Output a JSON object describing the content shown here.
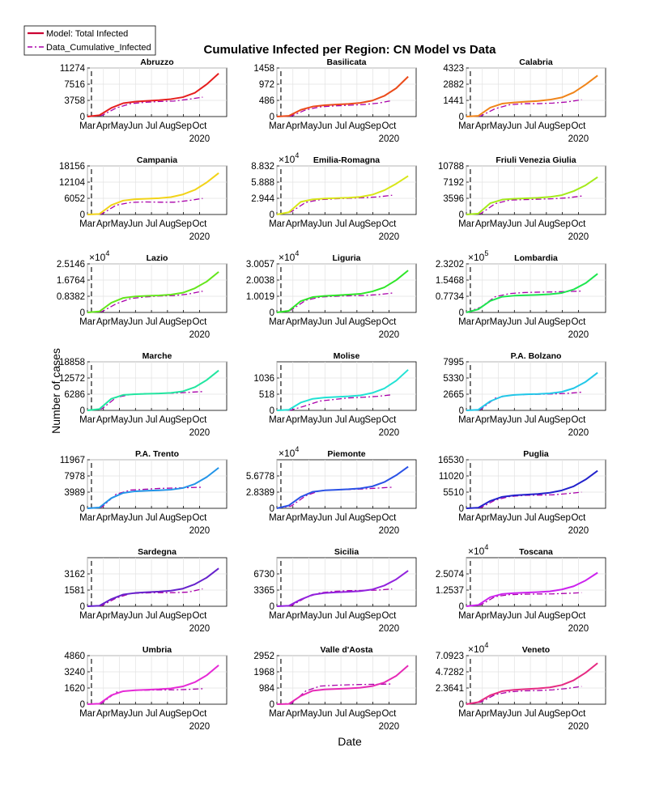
{
  "figure": {
    "title": "Cumulative Infected per Region: CN Model vs Data",
    "ylabel": "Number of cases",
    "xlabel": "Date",
    "legend": {
      "model_label": "Model: Total Infected",
      "data_label": "Data_Cumulative_Infected",
      "model_color": "#cc0033",
      "data_color": "#aa00aa"
    },
    "x_ticks": [
      "Mar",
      "Apr",
      "May",
      "Jun",
      "Jul",
      "Aug",
      "Sep",
      "Oct"
    ],
    "year_label": "2020"
  },
  "chart_data": [
    {
      "type": "line",
      "title": "Abruzzo",
      "color": "#e61e1e",
      "yticks": [
        "0",
        "3758",
        "7516",
        "11274"
      ],
      "exponent": "",
      "ylim": [
        0,
        11274
      ],
      "model_values": [
        0,
        300,
        2000,
        3100,
        3450,
        3650,
        3800,
        4050,
        4500,
        5500,
        7500,
        10000
      ],
      "data_values": [
        0,
        250,
        2000,
        3000,
        3300,
        3500,
        3600,
        4000,
        4500
      ]
    },
    {
      "type": "line",
      "title": "Basilicata",
      "color": "#eb4b1a",
      "yticks": [
        "0",
        "486",
        "972",
        "1458"
      ],
      "exponent": "",
      "ylim": [
        0,
        1458
      ],
      "model_values": [
        0,
        20,
        200,
        300,
        340,
        360,
        380,
        410,
        480,
        620,
        850,
        1200
      ],
      "data_values": [
        0,
        15,
        200,
        290,
        320,
        340,
        360,
        400,
        480
      ]
    },
    {
      "type": "line",
      "title": "Calabria",
      "color": "#f08419",
      "yticks": [
        "0",
        "1441",
        "2882",
        "4323"
      ],
      "exponent": "",
      "ylim": [
        0,
        4323
      ],
      "model_values": [
        0,
        60,
        800,
        1150,
        1250,
        1320,
        1390,
        1500,
        1700,
        2150,
        2850,
        3650
      ],
      "data_values": [
        0,
        50,
        700,
        1050,
        1150,
        1150,
        1200,
        1300,
        1500
      ]
    },
    {
      "type": "line",
      "title": "Campania",
      "color": "#f2d318",
      "yticks": [
        "0",
        "6052",
        "12104",
        "18156"
      ],
      "exponent": "",
      "ylim": [
        0,
        18156
      ],
      "model_values": [
        0,
        200,
        3500,
        5200,
        5700,
        5900,
        6100,
        6500,
        7500,
        9200,
        12000,
        15500
      ],
      "data_values": [
        0,
        200,
        3500,
        4500,
        4700,
        4600,
        4600,
        5200,
        6000
      ]
    },
    {
      "type": "line",
      "title": "Emilia-Romagna",
      "color": "#d8e618",
      "yticks": [
        "0",
        "2.944",
        "5.888",
        "8.832"
      ],
      "exponent": "×10^4",
      "ylim": [
        0,
        8.832
      ],
      "model_values": [
        0,
        0.4,
        2.3,
        2.75,
        2.9,
        2.98,
        3.05,
        3.2,
        3.6,
        4.4,
        5.6,
        7.0
      ],
      "data_values": [
        0,
        0.5,
        2.2,
        2.7,
        2.85,
        2.95,
        3.05,
        3.2,
        3.5
      ]
    },
    {
      "type": "line",
      "title": "Friuli Venezia Giulia",
      "color": "#a4ea1a",
      "yticks": [
        "0",
        "3596",
        "7192",
        "10788"
      ],
      "exponent": "",
      "ylim": [
        0,
        10788
      ],
      "model_values": [
        0,
        200,
        2500,
        3300,
        3500,
        3600,
        3700,
        3900,
        4300,
        5200,
        6500,
        8300
      ],
      "data_values": [
        0,
        200,
        2400,
        3200,
        3300,
        3400,
        3500,
        3700,
        4100
      ]
    },
    {
      "type": "line",
      "title": "Lazio",
      "color": "#64e61c",
      "yticks": [
        "0",
        "0.8382",
        "1.6764",
        "2.5146"
      ],
      "exponent": "×10^4",
      "ylim": [
        0,
        2.5146
      ],
      "model_values": [
        0,
        0.05,
        0.5,
        0.75,
        0.83,
        0.86,
        0.88,
        0.92,
        1.02,
        1.25,
        1.6,
        2.1
      ],
      "data_values": [
        0,
        0.04,
        0.45,
        0.72,
        0.8,
        0.85,
        0.87,
        0.95,
        1.1
      ]
    },
    {
      "type": "line",
      "title": "Liguria",
      "color": "#2ee628",
      "yticks": [
        "0",
        "1.0019",
        "2.0038",
        "3.0057"
      ],
      "exponent": "×10^4",
      "ylim": [
        0,
        3.0057
      ],
      "model_values": [
        0,
        0.1,
        0.7,
        0.95,
        1.02,
        1.06,
        1.1,
        1.15,
        1.3,
        1.55,
        2.0,
        2.6
      ],
      "data_values": [
        0,
        0.15,
        0.75,
        0.95,
        1.0,
        1.03,
        1.05,
        1.1,
        1.2
      ]
    },
    {
      "type": "line",
      "title": "Lombardia",
      "color": "#1ee650",
      "yticks": [
        "0",
        "0.7734",
        "1.5468",
        "2.3202"
      ],
      "exponent": "×10^5",
      "ylim": [
        0,
        2.3202
      ],
      "model_values": [
        0,
        0.15,
        0.55,
        0.75,
        0.8,
        0.82,
        0.84,
        0.87,
        0.93,
        1.1,
        1.4,
        1.85
      ],
      "data_values": [
        0,
        0.25,
        0.75,
        0.9,
        0.95,
        0.97,
        0.98,
        1.0,
        1.02
      ]
    },
    {
      "type": "line",
      "title": "Marche",
      "color": "#22e6a0",
      "yticks": [
        "0",
        "6286",
        "12572",
        "18858"
      ],
      "exponent": "",
      "ylim": [
        0,
        18858
      ],
      "model_values": [
        0,
        500,
        4500,
        6000,
        6300,
        6450,
        6550,
        6800,
        7400,
        9000,
        11800,
        15500
      ],
      "data_values": [
        0,
        600,
        5000,
        6200,
        6500,
        6600,
        6700,
        7000,
        7300
      ]
    },
    {
      "type": "line",
      "title": "Molise",
      "color": "#22e2d4",
      "yticks": [
        "0",
        "518",
        "1036"
      ],
      "exponent": "",
      "ylim": [
        0,
        1554
      ],
      "model_values": [
        0,
        20,
        250,
        370,
        410,
        430,
        450,
        480,
        560,
        700,
        950,
        1300
      ],
      "data_values": [
        0,
        10,
        150,
        300,
        350,
        400,
        420,
        450,
        500
      ]
    },
    {
      "type": "line",
      "title": "P.A. Bolzano",
      "color": "#22c8e8",
      "yticks": [
        "0",
        "2665",
        "5330",
        "7995"
      ],
      "exponent": "",
      "ylim": [
        0,
        7995
      ],
      "model_values": [
        0,
        100,
        1500,
        2300,
        2550,
        2650,
        2700,
        2800,
        3050,
        3650,
        4700,
        6200
      ],
      "data_values": [
        0,
        150,
        2000,
        2500,
        2600,
        2650,
        2700,
        2800,
        3000
      ]
    },
    {
      "type": "line",
      "title": "P.A. Trento",
      "color": "#2294e8",
      "yticks": [
        "0",
        "3989",
        "7978",
        "11967"
      ],
      "exponent": "",
      "ylim": [
        0,
        11967
      ],
      "model_values": [
        0,
        200,
        2500,
        3800,
        4200,
        4350,
        4450,
        4600,
        5000,
        6000,
        7700,
        10000
      ],
      "data_values": [
        0,
        300,
        3500,
        4500,
        4700,
        4900,
        5000,
        5100,
        5200
      ]
    },
    {
      "type": "line",
      "title": "Piemonte",
      "color": "#2a52e6",
      "yticks": [
        "0",
        "2.8389",
        "5.6778"
      ],
      "exponent": "×10^4",
      "ylim": [
        0,
        8.5167
      ],
      "model_values": [
        0,
        0.5,
        2.0,
        2.9,
        3.15,
        3.25,
        3.35,
        3.5,
        3.85,
        4.6,
        5.8,
        7.3
      ],
      "data_values": [
        0,
        0.4,
        2.2,
        3.1,
        3.25,
        3.3,
        3.4,
        3.55,
        3.7
      ]
    },
    {
      "type": "line",
      "title": "Puglia",
      "color": "#2222cc",
      "yticks": [
        "0",
        "5510",
        "11020",
        "16530"
      ],
      "exponent": "",
      "ylim": [
        0,
        16530
      ],
      "model_values": [
        0,
        200,
        2500,
        3900,
        4400,
        4650,
        4900,
        5300,
        6100,
        7500,
        9800,
        12800
      ],
      "data_values": [
        0,
        200,
        2800,
        4000,
        4400,
        4500,
        4600,
        5000,
        5500
      ]
    },
    {
      "type": "line",
      "title": "Sardegna",
      "color": "#6622cc",
      "yticks": [
        "0",
        "1581",
        "3162"
      ],
      "exponent": "",
      "ylim": [
        0,
        4743
      ],
      "model_values": [
        0,
        50,
        700,
        1150,
        1300,
        1370,
        1430,
        1520,
        1720,
        2150,
        2800,
        3700
      ],
      "data_values": [
        0,
        60,
        800,
        1250,
        1300,
        1330,
        1330,
        1380,
        1700
      ]
    },
    {
      "type": "line",
      "title": "Sicilia",
      "color": "#9222dd",
      "yticks": [
        "0",
        "3365",
        "6730"
      ],
      "exponent": "",
      "ylim": [
        0,
        10095
      ],
      "model_values": [
        0,
        100,
        1400,
        2400,
        2750,
        2900,
        3000,
        3150,
        3500,
        4300,
        5600,
        7400
      ],
      "data_values": [
        0,
        100,
        1800,
        2800,
        3100,
        3250,
        3300,
        3350,
        3600
      ]
    },
    {
      "type": "line",
      "title": "Toscana",
      "color": "#cc22ee",
      "yticks": [
        "0",
        "1.2537",
        "2.5074"
      ],
      "exponent": "×10^4",
      "ylim": [
        0,
        3.7611
      ],
      "model_values": [
        0,
        0.1,
        0.7,
        0.95,
        1.02,
        1.06,
        1.1,
        1.15,
        1.3,
        1.55,
        2.0,
        2.6
      ],
      "data_values": [
        0,
        0.1,
        0.75,
        0.9,
        0.93,
        0.95,
        0.96,
        1.0,
        1.05
      ]
    },
    {
      "type": "line",
      "title": "Umbria",
      "color": "#e62ad6",
      "yticks": [
        "0",
        "1620",
        "3240",
        "4860"
      ],
      "exponent": "",
      "ylim": [
        0,
        4860
      ],
      "model_values": [
        0,
        50,
        900,
        1300,
        1400,
        1450,
        1500,
        1580,
        1780,
        2200,
        2900,
        3900
      ],
      "data_values": [
        0,
        100,
        1200,
        1380,
        1400,
        1430,
        1440,
        1480,
        1550
      ]
    },
    {
      "type": "line",
      "title": "Valle d'Aosta",
      "color": "#e62ab6",
      "yticks": [
        "0",
        "984",
        "1968",
        "2952"
      ],
      "exponent": "",
      "ylim": [
        0,
        2952
      ],
      "model_values": [
        0,
        20,
        500,
        820,
        900,
        930,
        960,
        1000,
        1100,
        1320,
        1720,
        2350
      ],
      "data_values": [
        0,
        40,
        800,
        1100,
        1150,
        1180,
        1200,
        1210,
        1230
      ]
    },
    {
      "type": "line",
      "title": "Veneto",
      "color": "#e62a82",
      "yticks": [
        "0",
        "2.3641",
        "4.7282",
        "7.0923"
      ],
      "exponent": "×10^4",
      "ylim": [
        0,
        7.0923
      ],
      "model_values": [
        0,
        0.3,
        1.3,
        1.9,
        2.1,
        2.2,
        2.3,
        2.45,
        2.8,
        3.5,
        4.6,
        6.0
      ],
      "data_values": [
        0,
        0.3,
        1.4,
        1.8,
        1.95,
        2.0,
        2.1,
        2.3,
        2.6
      ]
    }
  ]
}
